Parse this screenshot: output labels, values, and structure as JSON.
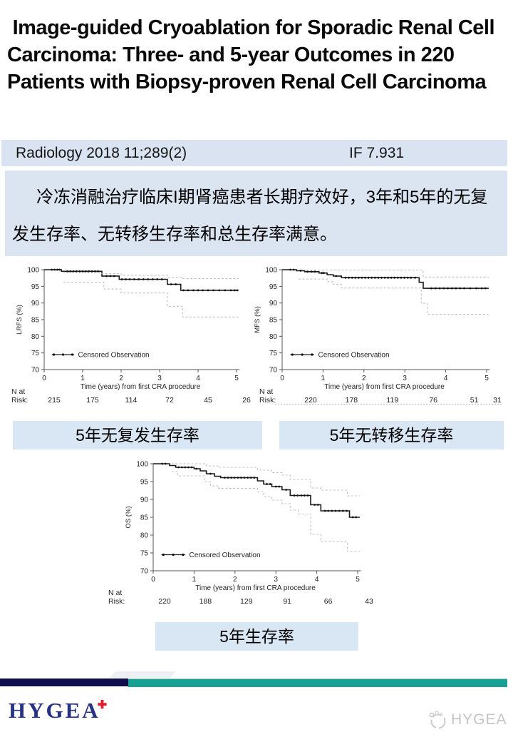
{
  "page": {
    "title": " Image-guided Cryoablation for Sporadic Renal Cell Carcinoma: Three- and 5-year Outcomes in 220 Patients with Biopsy-proven Renal Cell Carcinoma"
  },
  "journal_bar": {
    "citation": "Radiology 2018 11;289(2)",
    "impact_factor": "IF 7.931"
  },
  "summary": {
    "text": "冷冻消融治疗临床I期肾癌患者长期疗效好，3年和5年的无复发生存率、无转移生存率和总生存率满意。"
  },
  "captions": {
    "lrfs": "5年无复发生存率",
    "mfs": "5年无转移生存率",
    "os": "5年生存率"
  },
  "footer": {
    "logo_text": "HYGEA",
    "logo_cross": "✚",
    "watermark_text": "HYGEA",
    "watermark_icon": "hygea-circle-logo"
  },
  "theme": {
    "light_blue": "#dae3f1",
    "summary_blue": "#dbe5f1",
    "caption_blue": "#d9e6f4",
    "navy_bar": "#0f0e4d",
    "teal_bar": "#18a093",
    "logo_navy": "#283282",
    "logo_red": "#e8192c",
    "watermark_gray": "#c5c5c5",
    "curve_black": "#1a1a1a",
    "ci_gray": "#c0c0c0"
  },
  "chart_data": [
    {
      "name": "LRFS",
      "type": "line",
      "subtype": "kaplan_meier_step",
      "ylabel": "LRFS (%)",
      "xlabel": "Time (years) from first CRA procedure",
      "legend": "Censored Observation",
      "xlim": [
        0,
        5
      ],
      "ylim": [
        70,
        100
      ],
      "xticks": [
        0,
        1,
        2,
        3,
        4,
        5
      ],
      "yticks": [
        70,
        75,
        80,
        85,
        90,
        95,
        100
      ],
      "n_at_risk_label": [
        "N at",
        "Risk:"
      ],
      "n_at_risk": [
        215,
        175,
        114,
        72,
        45,
        26
      ],
      "series": [
        {
          "name": "survival",
          "style": "solid",
          "points": [
            [
              0,
              100
            ],
            [
              0.45,
              100
            ],
            [
              0.45,
              99.5
            ],
            [
              1.5,
              99.5
            ],
            [
              1.5,
              98.1
            ],
            [
              1.95,
              98.1
            ],
            [
              1.95,
              97.1
            ],
            [
              3.2,
              97.1
            ],
            [
              3.2,
              95.6
            ],
            [
              3.55,
              95.6
            ],
            [
              3.55,
              93.8
            ],
            [
              5.05,
              93.8
            ]
          ]
        },
        {
          "name": "upper_95ci",
          "style": "dashed",
          "points": [
            [
              0.5,
              99.2
            ],
            [
              1.5,
              99.2
            ],
            [
              1.5,
              98.8
            ],
            [
              2.0,
              98.8
            ],
            [
              2.0,
              98.3
            ],
            [
              3.2,
              98.3
            ],
            [
              3.2,
              97.7
            ],
            [
              3.6,
              97.7
            ],
            [
              3.6,
              97.3
            ],
            [
              5.05,
              97.3
            ]
          ]
        },
        {
          "name": "lower_95ci",
          "style": "dashed",
          "points": [
            [
              0.5,
              96.2
            ],
            [
              1.55,
              96.2
            ],
            [
              1.55,
              94.2
            ],
            [
              2.0,
              94.2
            ],
            [
              2.0,
              93.0
            ],
            [
              3.2,
              93.0
            ],
            [
              3.2,
              89.0
            ],
            [
              3.6,
              89.0
            ],
            [
              3.6,
              85.8
            ],
            [
              5.05,
              85.8
            ]
          ]
        }
      ],
      "censor_x": [
        0.2,
        0.27,
        0.34,
        0.4,
        0.6,
        0.68,
        0.76,
        0.84,
        0.92,
        1.0,
        1.08,
        1.16,
        1.24,
        1.32,
        1.4,
        1.62,
        1.72,
        1.82,
        2.02,
        2.12,
        2.22,
        2.34,
        2.46,
        2.58,
        2.7,
        2.82,
        2.94,
        3.06,
        3.3,
        3.42,
        3.62,
        3.74,
        3.88,
        4.0,
        4.12,
        4.26,
        4.4,
        4.55,
        4.7,
        4.85,
        4.95,
        5.02
      ]
    },
    {
      "name": "MFS",
      "type": "line",
      "subtype": "kaplan_meier_step",
      "ylabel": "MFS (%)",
      "xlabel": "Time (years) from first CRA procedure",
      "legend": "Censored Observation",
      "xlim": [
        0,
        5
      ],
      "ylim": [
        70,
        100
      ],
      "xticks": [
        0,
        1,
        2,
        3,
        4,
        5
      ],
      "yticks": [
        70,
        75,
        80,
        85,
        90,
        95,
        100
      ],
      "n_at_risk_label": [
        "N at",
        "Risk:"
      ],
      "n_at_risk": [
        220,
        178,
        119,
        76,
        51,
        31
      ],
      "series": [
        {
          "name": "survival",
          "style": "solid",
          "points": [
            [
              0,
              100
            ],
            [
              0.35,
              100
            ],
            [
              0.35,
              99.7
            ],
            [
              0.55,
              99.7
            ],
            [
              0.55,
              99.4
            ],
            [
              0.9,
              99.4
            ],
            [
              0.9,
              99.0
            ],
            [
              1.1,
              99.0
            ],
            [
              1.1,
              98.5
            ],
            [
              1.25,
              98.5
            ],
            [
              1.25,
              98.1
            ],
            [
              1.45,
              98.1
            ],
            [
              1.45,
              97.6
            ],
            [
              3.35,
              97.6
            ],
            [
              3.35,
              96.2
            ],
            [
              3.45,
              96.2
            ],
            [
              3.45,
              94.4
            ],
            [
              5.05,
              94.4
            ]
          ]
        },
        {
          "name": "upper_95ci",
          "style": "dashed",
          "points": [
            [
              0.4,
              99.9
            ],
            [
              3.45,
              99.9
            ],
            [
              3.45,
              97.8
            ],
            [
              5.05,
              97.8
            ]
          ]
        },
        {
          "name": "lower_95ci",
          "style": "dashed",
          "points": [
            [
              0.4,
              97.2
            ],
            [
              1.1,
              97.2
            ],
            [
              1.1,
              96.4
            ],
            [
              1.25,
              96.4
            ],
            [
              1.25,
              95.6
            ],
            [
              1.45,
              95.6
            ],
            [
              1.45,
              94.5
            ],
            [
              3.4,
              94.5
            ],
            [
              3.4,
              89.9
            ],
            [
              3.55,
              89.9
            ],
            [
              3.55,
              86.6
            ],
            [
              5.05,
              86.6
            ]
          ]
        }
      ],
      "censor_x": [
        0.2,
        0.28,
        0.45,
        0.62,
        0.72,
        0.8,
        0.97,
        1.02,
        1.32,
        1.55,
        1.63,
        1.71,
        1.79,
        1.87,
        1.95,
        2.03,
        2.11,
        2.19,
        2.27,
        2.35,
        2.43,
        2.51,
        2.59,
        2.67,
        2.75,
        2.83,
        2.91,
        2.99,
        3.07,
        3.15,
        3.25,
        3.65,
        3.75,
        3.85,
        3.95,
        4.05,
        4.15,
        4.25,
        4.35,
        4.45,
        4.6,
        4.75,
        4.88,
        4.97
      ]
    },
    {
      "name": "OS",
      "type": "line",
      "subtype": "kaplan_meier_step",
      "ylabel": "OS (%)",
      "xlabel": "Time (years) from first CRA procedure",
      "legend": "Censored Observation",
      "xlim": [
        0,
        5
      ],
      "ylim": [
        70,
        100
      ],
      "xticks": [
        0,
        1,
        2,
        3,
        4,
        5
      ],
      "yticks": [
        70,
        75,
        80,
        85,
        90,
        95,
        100
      ],
      "n_at_risk_label": [
        "N at",
        "Risk:"
      ],
      "n_at_risk": [
        220,
        188,
        129,
        91,
        66,
        43
      ],
      "series": [
        {
          "name": "survival",
          "style": "solid",
          "points": [
            [
              0,
              100
            ],
            [
              0.4,
              100
            ],
            [
              0.4,
              99.5
            ],
            [
              0.55,
              99.5
            ],
            [
              0.55,
              99.0
            ],
            [
              1.0,
              99.0
            ],
            [
              1.0,
              98.6
            ],
            [
              1.15,
              98.6
            ],
            [
              1.15,
              98.0
            ],
            [
              1.3,
              98.0
            ],
            [
              1.3,
              97.2
            ],
            [
              1.5,
              97.2
            ],
            [
              1.5,
              96.5
            ],
            [
              1.65,
              96.5
            ],
            [
              1.65,
              96.1
            ],
            [
              2.55,
              96.1
            ],
            [
              2.55,
              95.2
            ],
            [
              2.7,
              95.2
            ],
            [
              2.7,
              94.3
            ],
            [
              2.9,
              94.3
            ],
            [
              2.9,
              93.6
            ],
            [
              3.15,
              93.6
            ],
            [
              3.15,
              92.7
            ],
            [
              3.35,
              92.7
            ],
            [
              3.35,
              91.1
            ],
            [
              3.85,
              91.1
            ],
            [
              3.85,
              88.5
            ],
            [
              4.1,
              88.5
            ],
            [
              4.1,
              86.8
            ],
            [
              4.8,
              86.8
            ],
            [
              4.8,
              85.0
            ],
            [
              5.05,
              85.0
            ]
          ]
        },
        {
          "name": "upper_95ci",
          "style": "dashed",
          "points": [
            [
              0.45,
              100
            ],
            [
              1.3,
              100
            ],
            [
              1.3,
              99.4
            ],
            [
              1.6,
              99.4
            ],
            [
              1.6,
              99.0
            ],
            [
              2.55,
              99.0
            ],
            [
              2.55,
              98.2
            ],
            [
              2.9,
              98.2
            ],
            [
              2.9,
              97.5
            ],
            [
              3.15,
              97.5
            ],
            [
              3.15,
              96.8
            ],
            [
              3.35,
              96.8
            ],
            [
              3.35,
              95.6
            ],
            [
              3.85,
              95.6
            ],
            [
              3.85,
              93.2
            ],
            [
              4.1,
              93.2
            ],
            [
              4.1,
              92.6
            ],
            [
              4.75,
              92.6
            ],
            [
              4.75,
              91.0
            ],
            [
              5.05,
              91.0
            ]
          ]
        },
        {
          "name": "lower_95ci",
          "style": "dashed",
          "points": [
            [
              0.45,
              97.8
            ],
            [
              0.6,
              97.8
            ],
            [
              0.6,
              96.6
            ],
            [
              1.25,
              96.6
            ],
            [
              1.25,
              95.0
            ],
            [
              1.4,
              95.0
            ],
            [
              1.4,
              93.8
            ],
            [
              1.6,
              93.8
            ],
            [
              1.6,
              93.1
            ],
            [
              2.55,
              93.1
            ],
            [
              2.55,
              92.1
            ],
            [
              2.7,
              92.1
            ],
            [
              2.7,
              90.8
            ],
            [
              2.9,
              90.8
            ],
            [
              2.9,
              89.8
            ],
            [
              3.15,
              89.8
            ],
            [
              3.15,
              88.8
            ],
            [
              3.35,
              88.8
            ],
            [
              3.35,
              87.0
            ],
            [
              3.55,
              87.0
            ],
            [
              3.55,
              85.9
            ],
            [
              3.85,
              85.9
            ],
            [
              3.85,
              80.2
            ],
            [
              4.1,
              80.2
            ],
            [
              4.1,
              78.1
            ],
            [
              4.75,
              78.1
            ],
            [
              4.75,
              75.4
            ],
            [
              5.05,
              75.4
            ]
          ]
        }
      ],
      "censor_x": [
        0.22,
        0.3,
        0.62,
        0.7,
        0.78,
        0.86,
        0.94,
        1.06,
        1.4,
        1.75,
        1.83,
        1.91,
        1.99,
        2.07,
        2.15,
        2.23,
        2.31,
        2.39,
        2.47,
        2.78,
        2.86,
        3.0,
        3.08,
        3.25,
        3.45,
        3.53,
        3.62,
        3.7,
        3.78,
        3.95,
        4.03,
        4.2,
        4.28,
        4.37,
        4.46,
        4.55,
        4.64,
        4.73,
        4.88,
        4.96
      ]
    }
  ]
}
